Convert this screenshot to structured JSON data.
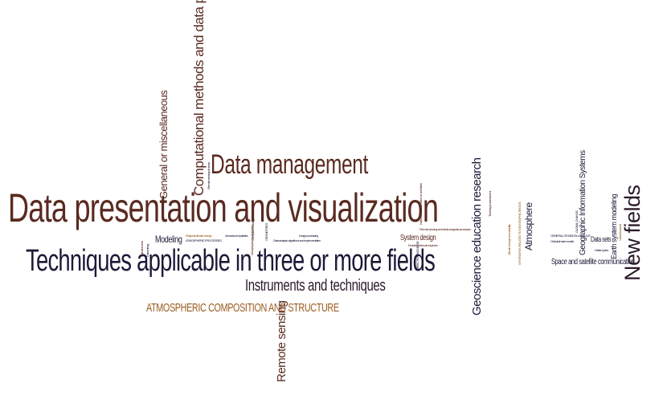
{
  "words": {
    "w01": "Data presentation and visualization",
    "w02": "Techniques applicable in three or more fields",
    "w03": "Data management",
    "w04": "Instruments and techniques",
    "w05": "ATMOSPHERIC COMPOSITION AND STRUCTURE",
    "w06": "Computational methods and data processing",
    "w07": "General or miscellaneous",
    "w08": "Remote sensing",
    "w09": "Geoscience education research",
    "w10": "New fields",
    "w11": "Atmosphere",
    "w12": "Space and satellite communication",
    "w13": "Earth system modeling",
    "w14": "Geographic Information Systems",
    "w15": "Data sets",
    "w16": "Modeling",
    "w17": "System design",
    "w18": "ATMOSPHERIC PROCESSES",
    "w19": "Data analysis: algorithms and implementation",
    "w20": "Image processing",
    "w21": "Instruction tools",
    "w22": "Data mining",
    "w23": "Regional climate change",
    "w24": "Aerosols and particles",
    "w25": "Cloud physics and chemistry",
    "w26": "Global climate models",
    "w27": "Water cycles",
    "w28": "Evolution of the atmosphere",
    "w29": "Remote sensing and electromagnetic processes",
    "w30": "Teaching & assessment",
    "w31": "INFORMATION RELATED TO GEOGRAPHIC REGION",
    "w32": "GLOBAL CHANGE",
    "w33": "Instruments useful in three or more fields",
    "w34": "DIRECTION-DATA BASE",
    "w35": "Climate change and variability",
    "w36": "Natural hazards",
    "w37": "GEOMETRICS",
    "w38": "GENERAL OR MISCELLANEOUS",
    "w39": "Computer modeling",
    "w40": "Remote sensing of ocean"
  },
  "palette": {
    "brown": "#5a2a20",
    "navy": "#1f1837",
    "dark": "#2b1a2a",
    "orange": "#9a5b1f"
  }
}
